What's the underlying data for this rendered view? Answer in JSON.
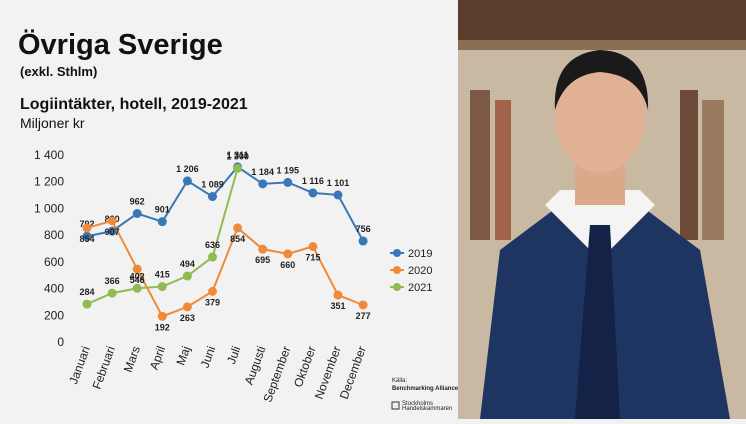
{
  "chart_data": {
    "type": "line",
    "title": "Övriga Sverige",
    "subtitle": "(exkl. Sthlm)",
    "chart_title": "Logiintäkter, hotell, 2019-2021",
    "y_label": "Miljoner kr",
    "source_label": "Källa:",
    "source": "Benchmarking Alliance",
    "logo_line1": "Stockholms",
    "logo_line2": "Handelskammaren",
    "categories": [
      "Januari",
      "Februari",
      "Mars",
      "April",
      "Maj",
      "Juni",
      "Juli",
      "Augusti",
      "September",
      "Oktober",
      "November",
      "December"
    ],
    "ylim": [
      0,
      1400
    ],
    "yticks": [
      0,
      200,
      400,
      600,
      800,
      {
        "value": 1000,
        "label": "1 000"
      },
      {
        "value": 1200,
        "label": "1 200"
      },
      {
        "value": 1400,
        "label": "1 400"
      }
    ],
    "legend": "right",
    "series": [
      {
        "name": "2019",
        "color": "#3a78b5",
        "values": [
          792,
          830,
          962,
          901,
          1206,
          1089,
          1311,
          1184,
          1195,
          1116,
          1101,
          756
        ],
        "value_labels": [
          "792",
          "830",
          "962",
          "901",
          "1 206",
          "1 089",
          "1 311",
          "1 184",
          "1 195",
          "1 116",
          "1 101",
          "756"
        ]
      },
      {
        "name": "2020",
        "color": "#ee8a3a",
        "values": [
          854,
          907,
          546,
          192,
          263,
          379,
          854,
          695,
          660,
          715,
          351,
          277
        ]
      },
      {
        "name": "2021",
        "color": "#8fbb50",
        "values": [
          284,
          366,
          402,
          415,
          494,
          636,
          1300,
          null,
          null,
          null,
          null,
          null
        ],
        "value_labels": [
          "284",
          "366",
          "402",
          "415",
          "494",
          "636",
          "1 300",
          null,
          null,
          null,
          null,
          null
        ]
      }
    ]
  }
}
